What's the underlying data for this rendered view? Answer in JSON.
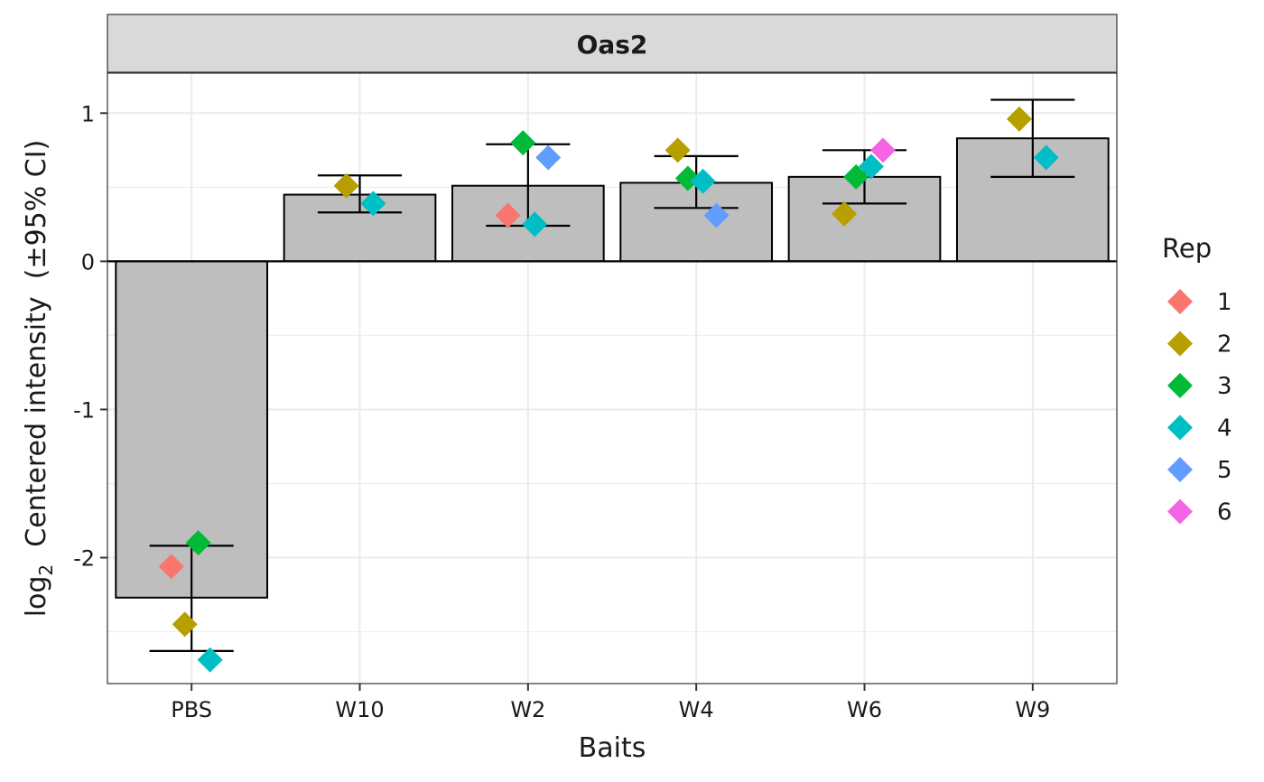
{
  "chart_data": {
    "type": "bar",
    "facet_title": "Oas2",
    "xlabel": "Baits",
    "ylabel": {
      "prefix": "log",
      "subscript": "2",
      "rest": "  Centered intensity  (±95% CI)"
    },
    "categories": [
      "PBS",
      "W10",
      "W2",
      "W4",
      "W6",
      "W9"
    ],
    "ylim": [
      -2.85,
      1.27
    ],
    "yticks": [
      1,
      0,
      -1,
      -2
    ],
    "ytick_labels": [
      "1",
      "0",
      "-1",
      "-2"
    ],
    "bars": [
      {
        "category": "PBS",
        "value": -2.27,
        "ci_low": -2.63,
        "ci_high": -1.92
      },
      {
        "category": "W10",
        "value": 0.45,
        "ci_low": 0.33,
        "ci_high": 0.58
      },
      {
        "category": "W2",
        "value": 0.51,
        "ci_low": 0.24,
        "ci_high": 0.79
      },
      {
        "category": "W4",
        "value": 0.53,
        "ci_low": 0.36,
        "ci_high": 0.71
      },
      {
        "category": "W6",
        "value": 0.57,
        "ci_low": 0.39,
        "ci_high": 0.75
      },
      {
        "category": "W9",
        "value": 0.83,
        "ci_low": 0.57,
        "ci_high": 1.09
      }
    ],
    "points": [
      {
        "category": "PBS",
        "rep": "1",
        "value": -2.06,
        "jitter": -0.12
      },
      {
        "category": "PBS",
        "rep": "2",
        "value": -2.45,
        "jitter": -0.04
      },
      {
        "category": "PBS",
        "rep": "3",
        "value": -1.9,
        "jitter": 0.04
      },
      {
        "category": "PBS",
        "rep": "4",
        "value": -2.69,
        "jitter": 0.11
      },
      {
        "category": "W10",
        "rep": "2",
        "value": 0.51,
        "jitter": -0.08
      },
      {
        "category": "W10",
        "rep": "4",
        "value": 0.39,
        "jitter": 0.08
      },
      {
        "category": "W2",
        "rep": "1",
        "value": 0.31,
        "jitter": -0.12
      },
      {
        "category": "W2",
        "rep": "3",
        "value": 0.8,
        "jitter": -0.03
      },
      {
        "category": "W2",
        "rep": "4",
        "value": 0.25,
        "jitter": 0.04
      },
      {
        "category": "W2",
        "rep": "5",
        "value": 0.7,
        "jitter": 0.12
      },
      {
        "category": "W4",
        "rep": "2",
        "value": 0.75,
        "jitter": -0.11
      },
      {
        "category": "W4",
        "rep": "3",
        "value": 0.56,
        "jitter": -0.05
      },
      {
        "category": "W4",
        "rep": "4",
        "value": 0.54,
        "jitter": 0.04
      },
      {
        "category": "W4",
        "rep": "5",
        "value": 0.31,
        "jitter": 0.12
      },
      {
        "category": "W6",
        "rep": "2",
        "value": 0.32,
        "jitter": -0.12
      },
      {
        "category": "W6",
        "rep": "3",
        "value": 0.57,
        "jitter": -0.05
      },
      {
        "category": "W6",
        "rep": "4",
        "value": 0.64,
        "jitter": 0.04
      },
      {
        "category": "W6",
        "rep": "6",
        "value": 0.75,
        "jitter": 0.11
      },
      {
        "category": "W9",
        "rep": "2",
        "value": 0.96,
        "jitter": -0.08
      },
      {
        "category": "W9",
        "rep": "4",
        "value": 0.7,
        "jitter": 0.08
      }
    ],
    "legend": {
      "title": "Rep",
      "placement": "right",
      "entries": [
        {
          "label": "1",
          "color": "#F8766D"
        },
        {
          "label": "2",
          "color": "#B79F00"
        },
        {
          "label": "3",
          "color": "#00BA38"
        },
        {
          "label": "4",
          "color": "#00BFC4"
        },
        {
          "label": "5",
          "color": "#619CFF"
        },
        {
          "label": "6",
          "color": "#F564E3"
        }
      ]
    },
    "colors": {
      "bar_fill": "#bebebe",
      "strip_fill": "#d9d9d9",
      "grid": "#ebebeb",
      "panel_border": "#333333"
    }
  }
}
